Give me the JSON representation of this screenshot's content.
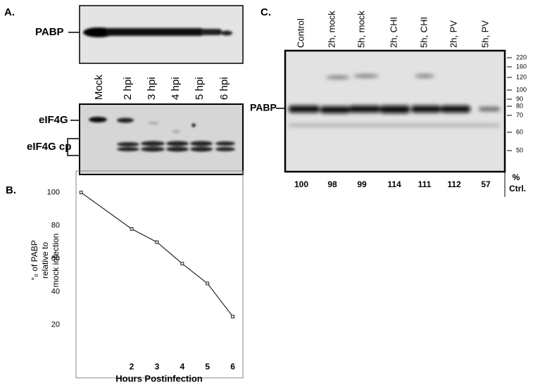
{
  "panel_a": {
    "label": "A.",
    "top_blot_label": "PABP",
    "lanes": [
      "Mock",
      "2 hpi",
      "3 hpi",
      "4 hpi",
      "5 hpi",
      "6 hpi"
    ],
    "bottom_blot_labels": [
      "eIF4G",
      "eIF4G cp"
    ]
  },
  "chart_data": {
    "type": "line",
    "panel_label": "B.",
    "y_label": [
      "°₀ of PABP",
      "relative to",
      "mock infection"
    ],
    "x_label": "Hours Postinfection",
    "x": [
      0,
      2,
      3,
      4,
      5,
      6
    ],
    "values": [
      100,
      78,
      70,
      57,
      45,
      25
    ],
    "color": "#000000",
    "xlim": [
      -0.2,
      6.4
    ],
    "ylim": [
      -12,
      113
    ],
    "xticks": [
      2,
      3,
      4,
      5,
      6
    ],
    "yticks": [
      20,
      40,
      60,
      80,
      100
    ]
  },
  "panel_c": {
    "label": "C.",
    "band_label": "PABP",
    "lanes": [
      "Control",
      "2h, mock",
      "5h, mock",
      "2h, CHI",
      "5h, CHI",
      "2h, PV",
      "5h, PV"
    ],
    "markers": [
      "220",
      "160",
      "120",
      "100",
      "90",
      "80",
      "70",
      "60",
      "50"
    ],
    "quantification": [
      "100",
      "98",
      "99",
      "114",
      "111",
      "112",
      "57"
    ],
    "quant_header": [
      "%",
      "Ctrl."
    ]
  }
}
